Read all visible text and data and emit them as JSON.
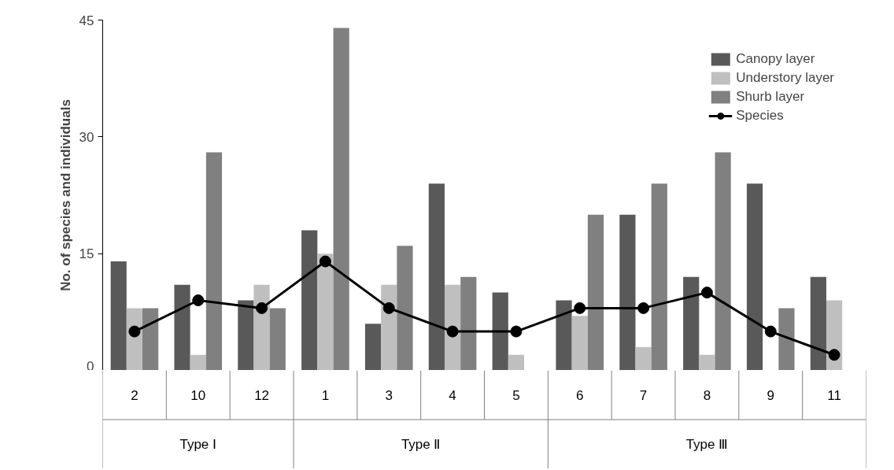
{
  "chart_data": {
    "type": "bar",
    "ylabel": "No. of species and individuals",
    "categories": [
      "2",
      "10",
      "12",
      "1",
      "3",
      "4",
      "5",
      "6",
      "7",
      "8",
      "9",
      "11"
    ],
    "series": [
      {
        "name": "Canopy layer",
        "color": "#595959",
        "values": [
          14,
          11,
          9,
          18,
          6,
          24,
          10,
          9,
          20,
          12,
          24,
          12
        ]
      },
      {
        "name": "Understory layer",
        "color": "#bfbfbf",
        "values": [
          8,
          2,
          11,
          15,
          11,
          11,
          2,
          7,
          3,
          2,
          0,
          9
        ]
      },
      {
        "name": "Shurb layer",
        "color": "#808080",
        "values": [
          8,
          28,
          8,
          44,
          16,
          12,
          0,
          20,
          24,
          28,
          8,
          0
        ]
      },
      {
        "name": "Species",
        "type": "line",
        "color": "#000000",
        "marker": "circle",
        "values": [
          5,
          9,
          8,
          14,
          8,
          5,
          5,
          8,
          8,
          10,
          5,
          2
        ]
      }
    ],
    "annotations": [
      "Type Ⅰ",
      "Type Ⅱ",
      "Type Ⅲ"
    ],
    "ylim": [
      0,
      45
    ],
    "yticks": [
      0,
      15,
      30,
      45
    ],
    "legend": "top right",
    "grid": false
  }
}
